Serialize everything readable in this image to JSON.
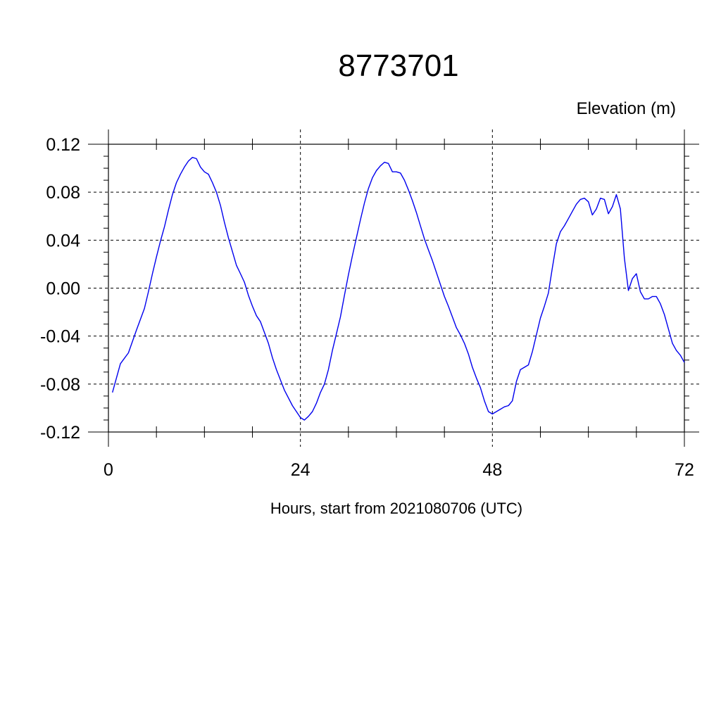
{
  "chart_data": {
    "type": "line",
    "title": "8773701",
    "ylabel": "Elevation (m)",
    "xlabel": "Hours, start from 2021080706 (UTC)",
    "xlim": [
      0,
      72
    ],
    "ylim": [
      -0.12,
      0.12
    ],
    "x_ticks": [
      0,
      24,
      48,
      72
    ],
    "x_tick_labels": [
      "0",
      "24",
      "48",
      "72"
    ],
    "y_ticks": [
      0.12,
      0.08,
      0.04,
      0.0,
      -0.04,
      -0.08,
      -0.12
    ],
    "y_tick_labels": [
      "0.12",
      "0.08",
      "0.04",
      "0.00",
      "-0.04",
      "-0.08",
      "-0.12"
    ],
    "grid": true,
    "colors": {
      "series": "#0000ee",
      "grid": "#000000",
      "axis": "#000000"
    },
    "series": [
      {
        "x": [
          0.5,
          1.5,
          2.5,
          3.5,
          4.5,
          5.0,
          5.5,
          6.0,
          6.5,
          7.0,
          7.5,
          8.0,
          8.5,
          9.0,
          9.5,
          10.0,
          10.5,
          11.0,
          11.5,
          12.0,
          12.5,
          13.0,
          13.5,
          14.0,
          14.5,
          15.0,
          16.0,
          16.5,
          17.0,
          17.5,
          18.0,
          18.5,
          19.0,
          20.0,
          20.5,
          21.0,
          22.0,
          23.0,
          23.5,
          24.0,
          24.5,
          25.0,
          25.5,
          26.0,
          26.5,
          27.0,
          27.5,
          28.0,
          28.5,
          29.0,
          29.5,
          30.0,
          30.5,
          31.0,
          31.5,
          32.0,
          32.5,
          33.0,
          33.5,
          34.0,
          34.5,
          35.0,
          35.5,
          36.0,
          36.5,
          37.0,
          37.5,
          38.0,
          38.5,
          39.0,
          39.5,
          40.0,
          40.5,
          41.0,
          41.5,
          42.0,
          42.5,
          43.0,
          43.5,
          44.0,
          44.5,
          45.0,
          45.5,
          46.0,
          46.5,
          47.0,
          47.5,
          48.0,
          48.5,
          49.0,
          49.5,
          50.0,
          50.5,
          51.0,
          51.5,
          52.0,
          52.5,
          53.0,
          53.5,
          54.0,
          54.5,
          55.0,
          55.5,
          56.0,
          56.5,
          57.0,
          57.5,
          58.0,
          58.5,
          59.0,
          59.5,
          60.0,
          60.5,
          61.0,
          61.5,
          62.0,
          62.5,
          63.0,
          63.5,
          64.0,
          64.5,
          65.0,
          65.5,
          66.0,
          66.5,
          67.0,
          67.5,
          68.0,
          68.5,
          69.0,
          69.5,
          70.0,
          70.5,
          71.0,
          71.5,
          72.0
        ],
        "y": [
          -0.087,
          -0.063,
          -0.054,
          -0.035,
          -0.017,
          -0.003,
          0.012,
          0.026,
          0.039,
          0.051,
          0.065,
          0.078,
          0.088,
          0.095,
          0.101,
          0.106,
          0.109,
          0.108,
          0.101,
          0.097,
          0.095,
          0.088,
          0.08,
          0.069,
          0.055,
          0.042,
          0.019,
          0.012,
          0.005,
          -0.006,
          -0.015,
          -0.023,
          -0.028,
          -0.046,
          -0.058,
          -0.068,
          -0.085,
          -0.098,
          -0.103,
          -0.108,
          -0.11,
          -0.107,
          -0.103,
          -0.096,
          -0.087,
          -0.08,
          -0.068,
          -0.052,
          -0.038,
          -0.024,
          -0.006,
          0.011,
          0.027,
          0.042,
          0.057,
          0.071,
          0.083,
          0.092,
          0.098,
          0.102,
          0.105,
          0.104,
          0.097,
          0.097,
          0.096,
          0.09,
          0.082,
          0.073,
          0.063,
          0.052,
          0.041,
          0.032,
          0.023,
          0.013,
          0.003,
          -0.007,
          -0.015,
          -0.024,
          -0.033,
          -0.039,
          -0.046,
          -0.055,
          -0.066,
          -0.075,
          -0.083,
          -0.094,
          -0.103,
          -0.105,
          -0.103,
          -0.101,
          -0.099,
          -0.098,
          -0.094,
          -0.078,
          -0.068,
          -0.066,
          -0.064,
          -0.053,
          -0.039,
          -0.025,
          -0.015,
          -0.004,
          0.017,
          0.037,
          0.047,
          0.052,
          0.058,
          0.064,
          0.07,
          0.074,
          0.075,
          0.072,
          0.061,
          0.066,
          0.075,
          0.074,
          0.062,
          0.068,
          0.078,
          0.066,
          0.025,
          -0.002,
          0.008,
          0.012,
          -0.003,
          -0.009,
          -0.009,
          -0.007,
          -0.007,
          -0.013,
          -0.022,
          -0.034,
          -0.046,
          -0.052,
          -0.056,
          -0.062
        ]
      }
    ]
  }
}
